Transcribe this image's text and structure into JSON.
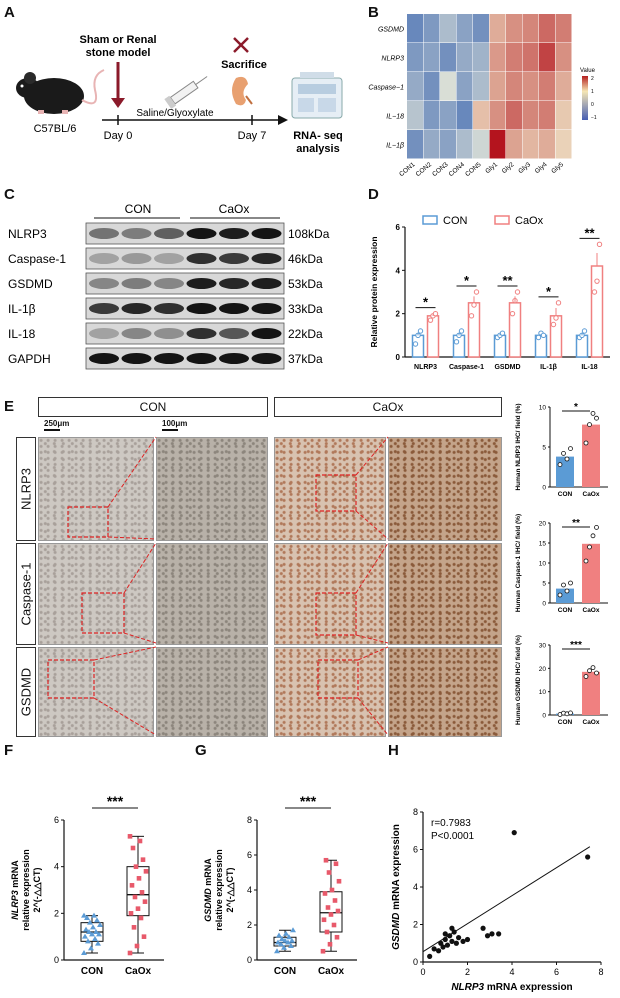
{
  "panels": {
    "a": "A",
    "b": "B",
    "c": "C",
    "d": "D",
    "e": "E",
    "f": "F",
    "g": "G",
    "h": "H"
  },
  "panel_a": {
    "model_line1": "Sham or Renal",
    "model_line2": "stone model",
    "sacrifice": "Sacrifice",
    "mouse": "C57BL/6",
    "treatment": "Saline/Glyoxylate",
    "day0": "Day 0",
    "day7": "Day 7",
    "rnaseq_line1": "RNA- seq",
    "rnaseq_line2": "analysis"
  },
  "panel_b": {
    "rows": [
      "GSDMD",
      "NLRP3",
      "Caspase−1",
      "IL−18",
      "IL−1β"
    ],
    "cols": [
      "CON1",
      "CON2",
      "CON3",
      "CON4",
      "CON5",
      "Gly1",
      "Gly2",
      "Gly3",
      "Gly4",
      "Gly5"
    ],
    "legend_title": "Value",
    "legend_ticks": [
      "2",
      "1",
      "0",
      "−1"
    ],
    "values": [
      [
        -1.2,
        -1.0,
        -0.6,
        -0.9,
        -1.1,
        0.6,
        0.9,
        1.0,
        1.3,
        1.1
      ],
      [
        -1.0,
        -0.9,
        -1.1,
        -0.8,
        -0.7,
        0.8,
        1.1,
        1.2,
        1.7,
        0.9
      ],
      [
        -0.8,
        -1.1,
        -0.2,
        -0.9,
        -0.6,
        0.7,
        1.0,
        0.9,
        1.1,
        0.6
      ],
      [
        -0.5,
        -1.0,
        -0.9,
        -1.2,
        0.4,
        0.9,
        1.3,
        1.0,
        1.1,
        0.3
      ],
      [
        -1.1,
        -0.8,
        -0.9,
        -0.6,
        -0.3,
        2.2,
        0.7,
        0.5,
        0.6,
        0.2
      ]
    ]
  },
  "panel_c": {
    "group1": "CON",
    "group2": "CaOx",
    "proteins": [
      "NLRP3",
      "Caspase-1",
      "GSDMD",
      "IL-1β",
      "IL-18",
      "GAPDH"
    ],
    "sizes": [
      "108kDa",
      "46kDa",
      "53kDa",
      "33kDa",
      "22kDa",
      "37kDa"
    ]
  },
  "panel_d": {
    "chart_data": {
      "type": "bar",
      "categories": [
        "NLRP3",
        "Caspase-1",
        "GSDMD",
        "IL-1β",
        "IL-18"
      ],
      "series": [
        {
          "name": "CON",
          "values": [
            1.0,
            1.0,
            1.0,
            1.0,
            1.0
          ],
          "points": [
            [
              0.6,
              1.0,
              1.2
            ],
            [
              0.7,
              1.0,
              1.2
            ],
            [
              0.9,
              1.0,
              1.1
            ],
            [
              0.9,
              1.1,
              1.0
            ],
            [
              0.9,
              1.0,
              1.2
            ]
          ]
        },
        {
          "name": "CaOx",
          "values": [
            1.9,
            2.5,
            2.5,
            1.9,
            4.2
          ],
          "points": [
            [
              1.7,
              1.9,
              2.0
            ],
            [
              1.9,
              2.4,
              3.0
            ],
            [
              2.0,
              2.6,
              3.0
            ],
            [
              1.5,
              1.8,
              2.5
            ],
            [
              3.0,
              3.5,
              5.2
            ]
          ]
        }
      ],
      "significance": [
        "*",
        "*",
        "**",
        "*",
        "**"
      ],
      "ylabel": "Relative protein expression",
      "ylim": [
        0,
        6
      ],
      "yticks": [
        "0",
        "2",
        "4",
        "6"
      ],
      "legend": "top",
      "colors": {
        "CON": "#5b9bd5",
        "CaOx": "#f08080"
      }
    }
  },
  "panel_e": {
    "col_con": "CON",
    "col_caox": "CaOx",
    "rows": [
      "NLRP3",
      "Caspase-1",
      "GSDMD"
    ],
    "scale1": "250μm",
    "scale2": "100μm",
    "charts": [
      {
        "type": "bar",
        "categories": [
          "CON",
          "CaOx"
        ],
        "values": [
          3.8,
          7.8
        ],
        "points": [
          [
            2.8,
            4.2,
            3.5,
            4.8
          ],
          [
            5.5,
            7.8,
            9.2,
            8.6
          ]
        ],
        "ylabel": "Human NLRP3 IHC/ field (%)",
        "ylim": [
          0,
          10
        ],
        "yticks": [
          "0",
          "5",
          "10"
        ],
        "sig": "*"
      },
      {
        "type": "bar",
        "categories": [
          "CON",
          "CaOx"
        ],
        "values": [
          3.6,
          14.8
        ],
        "points": [
          [
            2.0,
            4.5,
            3.0,
            5.0
          ],
          [
            10.5,
            14.0,
            16.8,
            18.9
          ]
        ],
        "ylabel": "Human Caspase-1 IHC/ field (%)",
        "ylim": [
          0,
          20
        ],
        "yticks": [
          "0",
          "5",
          "10",
          "15",
          "20"
        ],
        "sig": "**"
      },
      {
        "type": "bar",
        "categories": [
          "CON",
          "CaOx"
        ],
        "values": [
          0.6,
          18.5
        ],
        "points": [
          [
            0.2,
            0.8,
            0.5,
            0.9
          ],
          [
            16.5,
            19.0,
            20.3,
            18.0
          ]
        ],
        "ylabel": "Human GSDMD IHC/ field (%)",
        "ylim": [
          0,
          30
        ],
        "yticks": [
          "0",
          "10",
          "20",
          "30"
        ],
        "sig": "***"
      }
    ]
  },
  "panel_f": {
    "chart_data": {
      "type": "box",
      "categories": [
        "CON",
        "CaOx"
      ],
      "ylabel_gene": "NLRP3",
      "ylabel_rest1": " mRNA",
      "ylabel_line2": "relative expression",
      "ylabel_line3": "2^(-△△CT)",
      "ylim": [
        0,
        6
      ],
      "yticks": [
        "0",
        "2",
        "4",
        "6"
      ],
      "sig": "***",
      "boxes": [
        {
          "min": 0.3,
          "q1": 0.8,
          "median": 1.2,
          "q3": 1.6,
          "max": 1.9
        },
        {
          "min": 0.3,
          "q1": 1.9,
          "median": 2.8,
          "q3": 4.0,
          "max": 5.3
        }
      ],
      "points": [
        [
          0.3,
          0.5,
          0.7,
          0.8,
          0.9,
          1.0,
          1.1,
          1.1,
          1.2,
          1.2,
          1.3,
          1.4,
          1.5,
          1.6,
          1.7,
          1.8,
          1.9,
          1.9
        ],
        [
          0.3,
          0.6,
          1.0,
          1.4,
          1.8,
          2.0,
          2.2,
          2.5,
          2.7,
          2.9,
          3.2,
          3.5,
          3.8,
          4.0,
          4.3,
          4.8,
          5.1,
          5.3
        ]
      ]
    }
  },
  "panel_g": {
    "chart_data": {
      "type": "box",
      "categories": [
        "CON",
        "CaOx"
      ],
      "ylabel_gene": "GSDMD",
      "ylabel_rest1": " mRNA",
      "ylabel_line2": "relative expression",
      "ylabel_line3": "2^(-△△CT)",
      "ylim": [
        0,
        8
      ],
      "yticks": [
        "0",
        "2",
        "4",
        "6",
        "8"
      ],
      "sig": "***",
      "boxes": [
        {
          "min": 0.5,
          "q1": 0.8,
          "median": 1.0,
          "q3": 1.3,
          "max": 1.7
        },
        {
          "min": 0.5,
          "q1": 1.6,
          "median": 2.7,
          "q3": 3.9,
          "max": 5.7
        }
      ],
      "points": [
        [
          0.5,
          0.7,
          0.8,
          0.9,
          1.0,
          1.0,
          1.1,
          1.1,
          1.2,
          1.3,
          1.4,
          1.5,
          1.7
        ],
        [
          0.5,
          0.9,
          1.3,
          1.6,
          2.0,
          2.3,
          2.6,
          2.8,
          3.0,
          3.4,
          3.8,
          4.0,
          4.5,
          5.0,
          5.5,
          5.7
        ]
      ]
    }
  },
  "panel_h": {
    "chart_data": {
      "type": "scatter",
      "r": "r=0.7983",
      "p": "P<0.0001",
      "xlabel_gene": "NLRP3",
      "xlabel_rest": " mRNA expression",
      "ylabel_gene": "GSDMD",
      "ylabel_rest": " mRNA expression",
      "xlim": [
        0,
        8
      ],
      "ylim": [
        0,
        8
      ],
      "xticks": [
        "0",
        "2",
        "4",
        "6",
        "8"
      ],
      "yticks": [
        "0",
        "2",
        "4",
        "6",
        "8"
      ],
      "points": [
        [
          0.3,
          0.3
        ],
        [
          0.5,
          0.7
        ],
        [
          0.7,
          0.6
        ],
        [
          0.8,
          1.0
        ],
        [
          0.9,
          0.8
        ],
        [
          1.0,
          1.2
        ],
        [
          1.1,
          0.9
        ],
        [
          1.2,
          1.4
        ],
        [
          1.3,
          1.1
        ],
        [
          1.4,
          1.6
        ],
        [
          1.5,
          1.0
        ],
        [
          1.6,
          1.3
        ],
        [
          1.8,
          1.1
        ],
        [
          2.0,
          1.2
        ],
        [
          2.7,
          1.8
        ],
        [
          2.9,
          1.4
        ],
        [
          3.1,
          1.5
        ],
        [
          3.4,
          1.5
        ],
        [
          4.1,
          6.9
        ],
        [
          7.4,
          5.6
        ],
        [
          1.0,
          1.5
        ],
        [
          1.3,
          1.8
        ]
      ],
      "fit": [
        [
          0,
          0.55
        ],
        [
          7.5,
          6.15
        ]
      ]
    }
  }
}
